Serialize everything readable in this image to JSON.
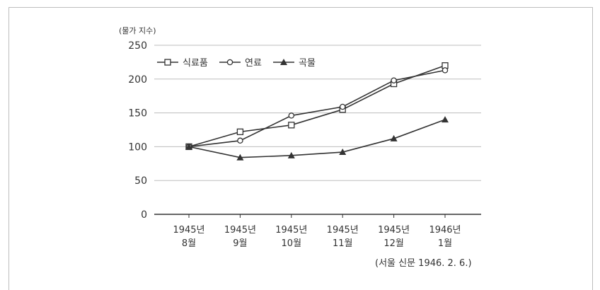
{
  "chart_data": {
    "type": "line",
    "unit_label": "(물가 지수)",
    "categories": [
      [
        "1945년",
        "8월"
      ],
      [
        "1945년",
        "9월"
      ],
      [
        "1945년",
        "10월"
      ],
      [
        "1945년",
        "11월"
      ],
      [
        "1945년",
        "12월"
      ],
      [
        "1946년",
        "1월"
      ]
    ],
    "series": [
      {
        "name": "식료품",
        "marker": "square",
        "values": [
          100,
          122,
          132,
          155,
          193,
          220
        ]
      },
      {
        "name": "연료",
        "marker": "circle",
        "values": [
          100,
          109,
          146,
          159,
          198,
          213
        ]
      },
      {
        "name": "곡물",
        "marker": "triangle",
        "values": [
          100,
          84,
          87,
          92,
          112,
          140
        ]
      }
    ],
    "yticks": [
      0,
      50,
      100,
      150,
      200,
      250
    ],
    "ylim": [
      0,
      250
    ],
    "grid": true,
    "legend_position": "top-left",
    "source": "(서울 신문 1946. 2. 6.)",
    "colors": {
      "line": "#333333",
      "grid": "#bdbdbd",
      "axis": "#333333"
    }
  }
}
